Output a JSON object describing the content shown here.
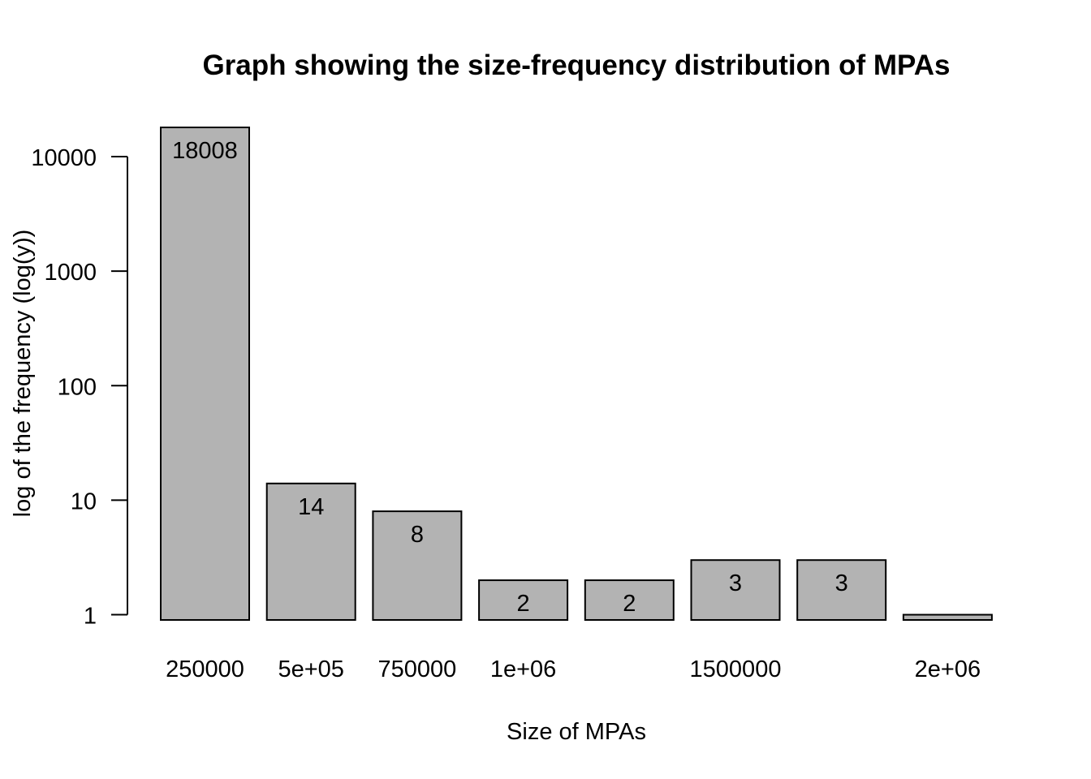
{
  "chart_data": {
    "type": "bar",
    "title": "Graph showing the size-frequency distribution of MPAs",
    "xlabel": "Size of MPAs",
    "ylabel": "log of the frequency (log(y))",
    "y_scale": "log",
    "y_ticks": [
      "1",
      "10",
      "100",
      "1000",
      "10000"
    ],
    "y_tick_values": [
      1,
      10,
      100,
      1000,
      10000
    ],
    "ylim": [
      0.9,
      18008
    ],
    "bar_color": "#b3b3b3",
    "categories": [
      "250000",
      "5e+05",
      "750000",
      "1e+06",
      "",
      "1500000",
      "",
      "2e+06"
    ],
    "values": [
      18008,
      14,
      8,
      2,
      2,
      3,
      3,
      1
    ],
    "data_labels": [
      "18008",
      "14",
      "8",
      "2",
      "2",
      "3",
      "3",
      ""
    ],
    "grid": false,
    "legend": "none"
  }
}
